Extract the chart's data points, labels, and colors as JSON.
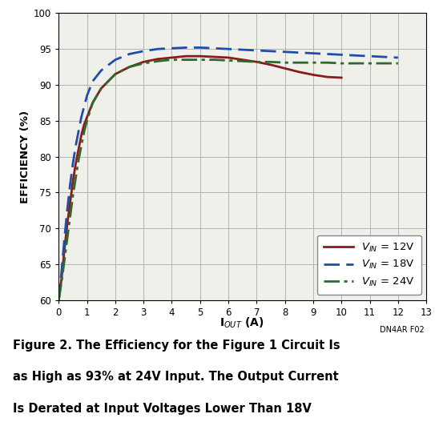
{
  "ylabel": "EFFICIENCY (%)",
  "xlim": [
    0,
    13
  ],
  "ylim": [
    60,
    100
  ],
  "xticks": [
    0,
    1,
    2,
    3,
    4,
    5,
    6,
    7,
    8,
    9,
    10,
    11,
    12,
    13
  ],
  "yticks": [
    60,
    65,
    70,
    75,
    80,
    85,
    90,
    95,
    100
  ],
  "vin12_x": [
    0.0,
    0.1,
    0.2,
    0.3,
    0.4,
    0.5,
    0.6,
    0.7,
    0.8,
    0.9,
    1.0,
    1.2,
    1.5,
    2.0,
    2.5,
    3.0,
    3.5,
    4.0,
    4.5,
    5.0,
    5.5,
    6.0,
    6.5,
    7.0,
    7.5,
    8.0,
    8.5,
    9.0,
    9.5,
    10.0
  ],
  "vin12_y": [
    60.0,
    63.0,
    67.0,
    70.5,
    73.5,
    76.5,
    79.0,
    81.0,
    83.0,
    84.5,
    85.5,
    87.5,
    89.5,
    91.5,
    92.5,
    93.2,
    93.6,
    93.8,
    94.0,
    94.0,
    93.9,
    93.8,
    93.5,
    93.2,
    92.8,
    92.3,
    91.8,
    91.4,
    91.1,
    91.0
  ],
  "vin18_x": [
    0.0,
    0.1,
    0.2,
    0.3,
    0.4,
    0.5,
    0.6,
    0.7,
    0.8,
    0.9,
    1.0,
    1.2,
    1.5,
    2.0,
    2.5,
    3.0,
    3.5,
    4.0,
    4.5,
    5.0,
    5.5,
    6.0,
    6.5,
    7.0,
    7.5,
    8.0,
    8.5,
    9.0,
    9.5,
    10.0,
    10.5,
    11.0,
    11.5,
    12.0
  ],
  "vin18_y": [
    60.0,
    64.0,
    68.5,
    72.5,
    76.0,
    79.0,
    81.5,
    83.5,
    85.5,
    87.0,
    88.5,
    90.5,
    92.0,
    93.5,
    94.3,
    94.7,
    95.0,
    95.1,
    95.2,
    95.2,
    95.1,
    95.0,
    94.9,
    94.8,
    94.7,
    94.6,
    94.5,
    94.4,
    94.3,
    94.2,
    94.1,
    94.0,
    93.9,
    93.8
  ],
  "vin24_x": [
    0.0,
    0.1,
    0.2,
    0.3,
    0.4,
    0.5,
    0.6,
    0.7,
    0.8,
    0.9,
    1.0,
    1.2,
    1.5,
    2.0,
    2.5,
    3.0,
    3.5,
    4.0,
    4.5,
    5.0,
    5.5,
    6.0,
    6.5,
    7.0,
    7.5,
    8.0,
    8.5,
    9.0,
    9.5,
    10.0,
    10.5,
    11.0,
    11.5,
    12.0
  ],
  "vin24_y": [
    60.0,
    62.5,
    65.5,
    68.5,
    71.5,
    74.5,
    77.0,
    79.5,
    81.5,
    83.5,
    85.0,
    87.5,
    89.5,
    91.5,
    92.5,
    93.0,
    93.3,
    93.5,
    93.5,
    93.5,
    93.5,
    93.4,
    93.3,
    93.2,
    93.2,
    93.1,
    93.1,
    93.1,
    93.1,
    93.0,
    93.0,
    93.0,
    93.0,
    93.0
  ],
  "color_12v": "#8B1A1A",
  "color_18v": "#1F4EAA",
  "color_24v": "#2D6B2D",
  "bg_color": "#F0F0EB",
  "grid_color": "#AAAAAA",
  "caption_line1": "Figure 2. The Efficiency for the Figure 1 Circuit Is",
  "caption_line2": "as High as 93% at 24V Input. The Output Current",
  "caption_line3": "Is Derated at Input Voltages Lower Than 18V",
  "annotation": "DN4AR F02"
}
